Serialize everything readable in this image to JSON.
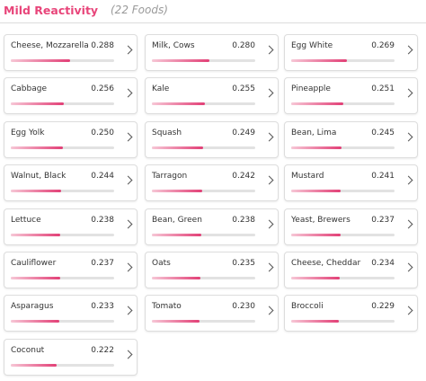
{
  "header": {
    "title": "Mild Reactivity",
    "subtitle": "(22 Foods)"
  },
  "xlim": [
    0,
    0.5
  ],
  "items": [
    {
      "name": "Cheese, Mozzarella",
      "value": 0.288
    },
    {
      "name": "Milk, Cows",
      "value": 0.28,
      "label": "0.280"
    },
    {
      "name": "Egg White",
      "value": 0.269
    },
    {
      "name": "Cabbage",
      "value": 0.256
    },
    {
      "name": "Kale",
      "value": 0.255
    },
    {
      "name": "Pineapple",
      "value": 0.251
    },
    {
      "name": "Egg Yolk",
      "value": 0.25,
      "label": "0.250"
    },
    {
      "name": "Squash",
      "value": 0.249
    },
    {
      "name": "Bean, Lima",
      "value": 0.245
    },
    {
      "name": "Walnut, Black",
      "value": 0.244
    },
    {
      "name": "Tarragon",
      "value": 0.242
    },
    {
      "name": "Mustard",
      "value": 0.241
    },
    {
      "name": "Lettuce",
      "value": 0.238
    },
    {
      "name": "Bean, Green",
      "value": 0.238
    },
    {
      "name": "Yeast, Brewers",
      "value": 0.237
    },
    {
      "name": "Cauliflower",
      "value": 0.237
    },
    {
      "name": "Oats",
      "value": 0.235
    },
    {
      "name": "Cheese, Cheddar",
      "value": 0.234
    },
    {
      "name": "Asparagus",
      "value": 0.233
    },
    {
      "name": "Tomato",
      "value": 0.23,
      "label": "0.230"
    },
    {
      "name": "Broccoli",
      "value": 0.229
    },
    {
      "name": "Coconut",
      "value": 0.222
    }
  ]
}
